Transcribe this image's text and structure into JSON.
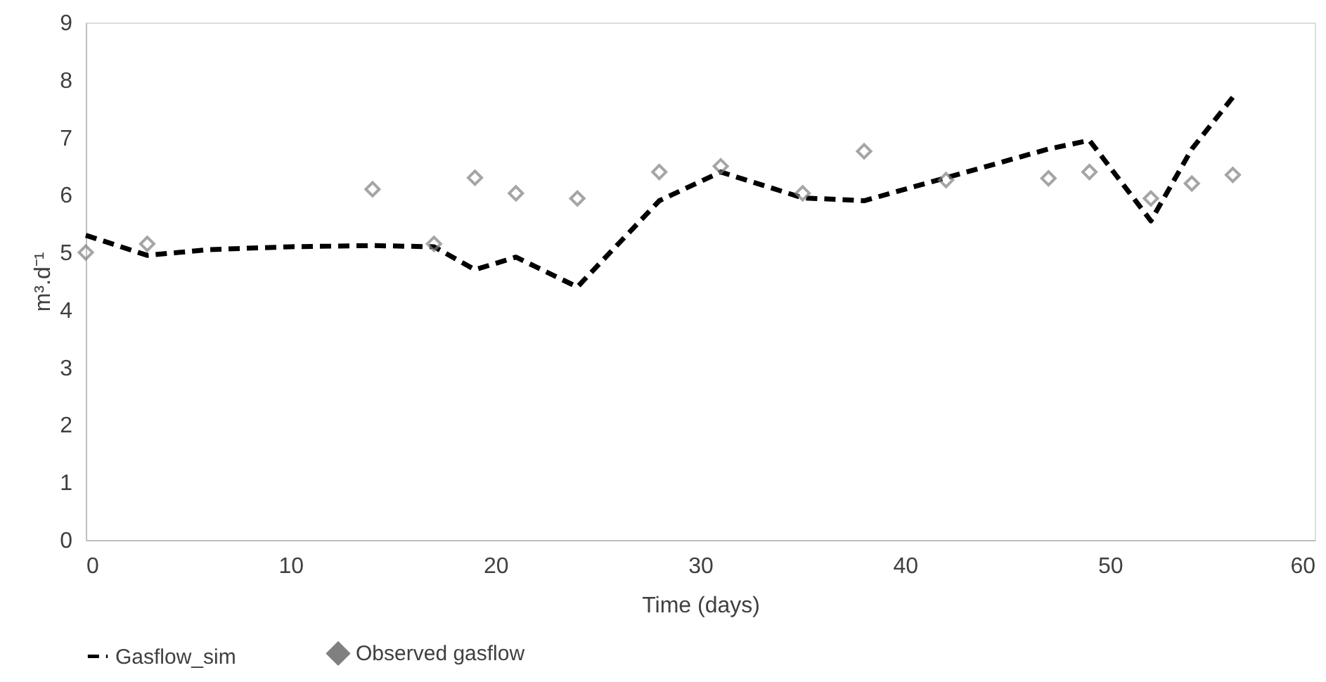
{
  "chart_data": {
    "type": "line",
    "xlabel": "Time (days)",
    "ylabel": "m³.d⁻¹",
    "xlim": [
      0,
      60
    ],
    "xticks": [
      0,
      10,
      20,
      30,
      40,
      50,
      60
    ],
    "ylim": [
      0,
      9
    ],
    "yticks": [
      0,
      1,
      2,
      3,
      4,
      5,
      6,
      7,
      8,
      9
    ],
    "grid": false,
    "legend": "bottom",
    "series": [
      {
        "name": "Gasflow_sim",
        "type": "line",
        "line_style": "dashed",
        "color": "#000000",
        "x": [
          0,
          3,
          6,
          10,
          14,
          17,
          19,
          21,
          24,
          28,
          31,
          35,
          38,
          42,
          47,
          49,
          52,
          54,
          56
        ],
        "values": [
          5.3,
          4.95,
          5.05,
          5.1,
          5.12,
          5.1,
          4.7,
          4.92,
          4.4,
          5.9,
          6.4,
          5.95,
          5.9,
          6.3,
          6.8,
          6.95,
          5.55,
          6.8,
          7.7
        ]
      },
      {
        "name": "Observed gasflow",
        "type": "scatter",
        "marker": "diamond",
        "color": "#808080",
        "x": [
          0,
          3,
          14,
          17,
          19,
          21,
          24,
          28,
          31,
          35,
          38,
          42,
          47,
          49,
          52,
          54,
          56
        ],
        "values": [
          5.0,
          5.15,
          6.1,
          5.15,
          6.3,
          6.03,
          5.94,
          6.4,
          6.5,
          6.03,
          6.76,
          6.26,
          6.29,
          6.4,
          5.94,
          6.2,
          6.35
        ]
      }
    ]
  }
}
